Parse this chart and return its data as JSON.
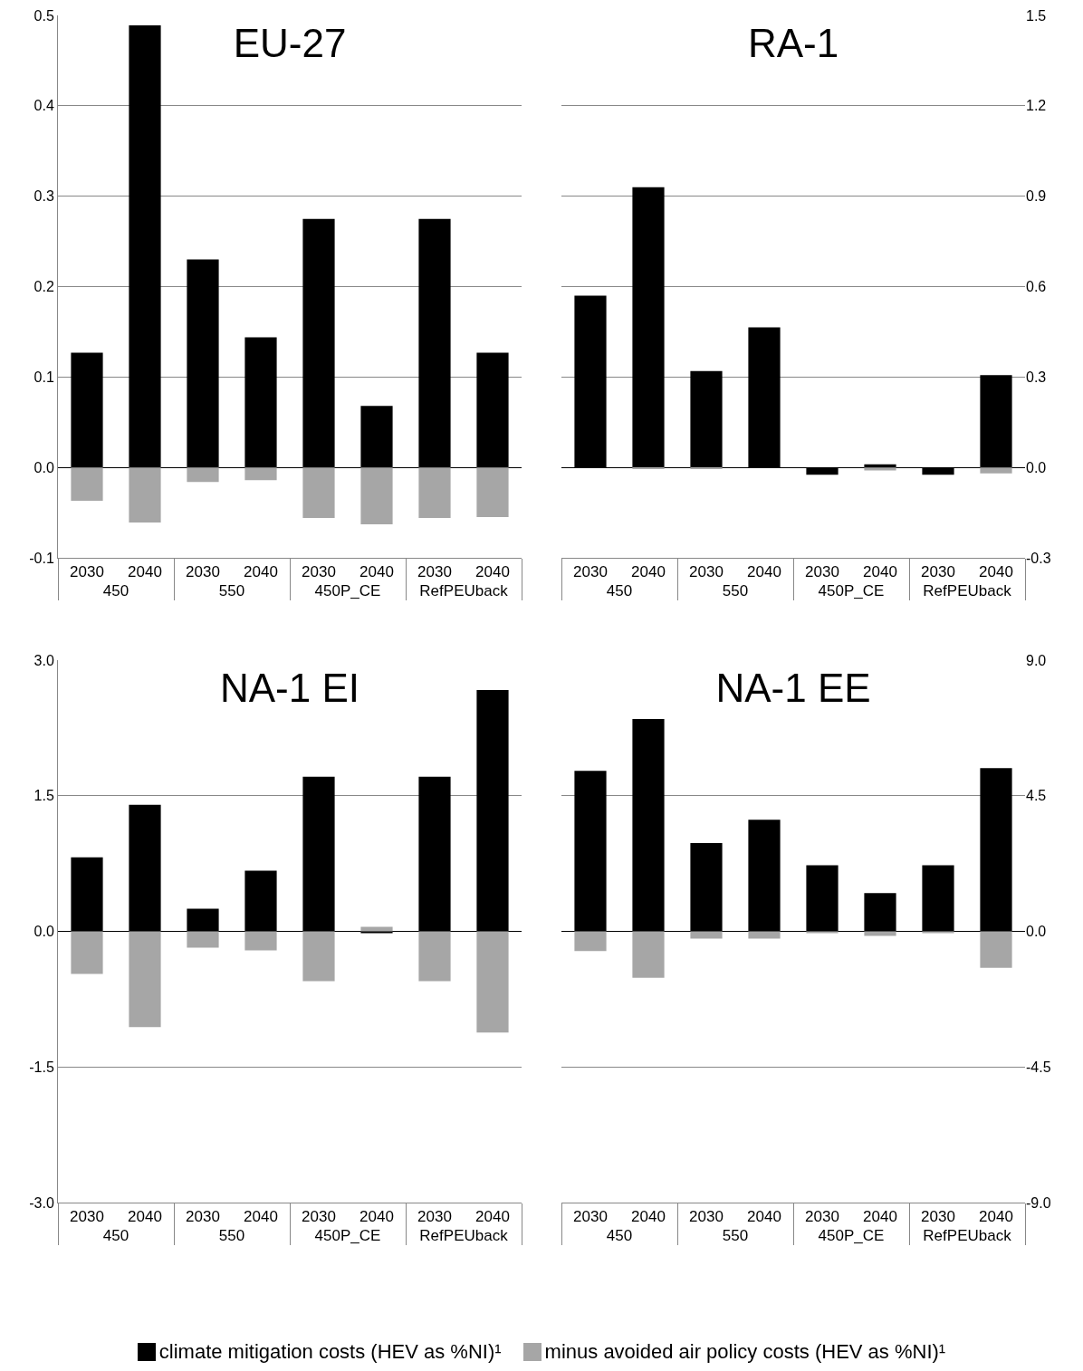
{
  "chart_data": [
    {
      "type": "bar",
      "title": "EU-27",
      "categories": [
        "2030",
        "2040",
        "2030",
        "2040",
        "2030",
        "2040",
        "2030",
        "2040"
      ],
      "annotations": [
        "450",
        "550",
        "450P_CE",
        "RefPEUback"
      ],
      "stacked": true,
      "grid": "y",
      "legend": "bottom",
      "ylim": [
        -0.1,
        0.5
      ],
      "yticks": [
        {
          "value": -0.1,
          "label": "-0.1"
        },
        {
          "value": 0,
          "label": "0.0"
        },
        0.1,
        0.2,
        0.3,
        0.4,
        0.5
      ],
      "series": [
        {
          "name": "climate mitigation costs (HEV as %NI)¹",
          "color": "#000000",
          "values": [
            0.127,
            0.489,
            0.23,
            0.144,
            0.275,
            0.068,
            0.275,
            0.127
          ]
        },
        {
          "name": "minus avoided air policy costs (HEV as %NI)¹",
          "color": "#a6a6a6",
          "values": [
            -0.037,
            -0.061,
            -0.016,
            -0.014,
            -0.056,
            -0.063,
            -0.056,
            -0.055
          ]
        }
      ]
    },
    {
      "type": "bar",
      "title": "RA-1",
      "categories": [
        "2030",
        "2040",
        "2030",
        "2040",
        "2030",
        "2040",
        "2030",
        "2040"
      ],
      "annotations": [
        "450",
        "550",
        "450P_CE",
        "RefPEUback"
      ],
      "stacked": true,
      "grid": "y",
      "legend": false,
      "ylim": [
        -0.3,
        1.5
      ],
      "yticks": [
        {
          "value": -0.3,
          "label": "-0.3"
        },
        {
          "value": 0,
          "label": "0.0"
        },
        0.3,
        0.6,
        0.9,
        1.2,
        1.5
      ],
      "series": [
        {
          "color": "#000000",
          "values": [
            0.57,
            0.93,
            0.32,
            0.465,
            -0.024,
            0.01,
            -0.024,
            0.306
          ]
        },
        {
          "color": "#a6a6a6",
          "values": [
            0,
            -0.005,
            -0.005,
            0,
            0,
            -0.01,
            0,
            -0.02
          ]
        }
      ]
    },
    {
      "type": "bar",
      "title": "NA-1 EI",
      "categories": [
        "2030",
        "2040",
        "2030",
        "2040",
        "2030",
        "2040",
        "2030",
        "2040"
      ],
      "annotations": [
        "450",
        "550",
        "450P_CE",
        "RefPEUback"
      ],
      "stacked": true,
      "grid": "y",
      "legend": false,
      "ylim": [
        -3,
        3
      ],
      "yticks": [
        {
          "value": -3,
          "label": "-3.0"
        },
        {
          "value": -1.5,
          "label": "-1.5"
        },
        {
          "value": 0,
          "label": "0.0"
        },
        1.5,
        {
          "value": 3,
          "label": "3.0"
        }
      ],
      "series": [
        {
          "color": "#000000",
          "values": [
            0.82,
            1.4,
            0.25,
            0.67,
            1.71,
            -0.02,
            1.71,
            2.67
          ]
        },
        {
          "color": "#a6a6a6",
          "values": [
            -0.47,
            -1.06,
            -0.18,
            -0.21,
            -0.55,
            0.05,
            -0.55,
            -1.12
          ]
        }
      ]
    },
    {
      "type": "bar",
      "title": "NA-1 EE",
      "categories": [
        "2030",
        "2040",
        "2030",
        "2040",
        "2030",
        "2040",
        "2030",
        "2040"
      ],
      "annotations": [
        "450",
        "550",
        "450P_CE",
        "RefPEUback"
      ],
      "stacked": true,
      "grid": "y",
      "legend": false,
      "ylim": [
        -9,
        9
      ],
      "yticks": [
        {
          "value": -9,
          "label": "-9.0"
        },
        {
          "value": -4.5,
          "label": "-4.5"
        },
        {
          "value": 0,
          "label": "0.0"
        },
        4.5,
        {
          "value": 9,
          "label": "9.0"
        }
      ],
      "series": [
        {
          "color": "#000000",
          "values": [
            5.33,
            7.05,
            2.93,
            3.7,
            2.19,
            1.27,
            2.19,
            5.42
          ]
        },
        {
          "color": "#a6a6a6",
          "values": [
            -0.65,
            -1.54,
            -0.24,
            -0.24,
            -0.06,
            -0.15,
            -0.06,
            -1.21
          ]
        }
      ]
    }
  ]
}
